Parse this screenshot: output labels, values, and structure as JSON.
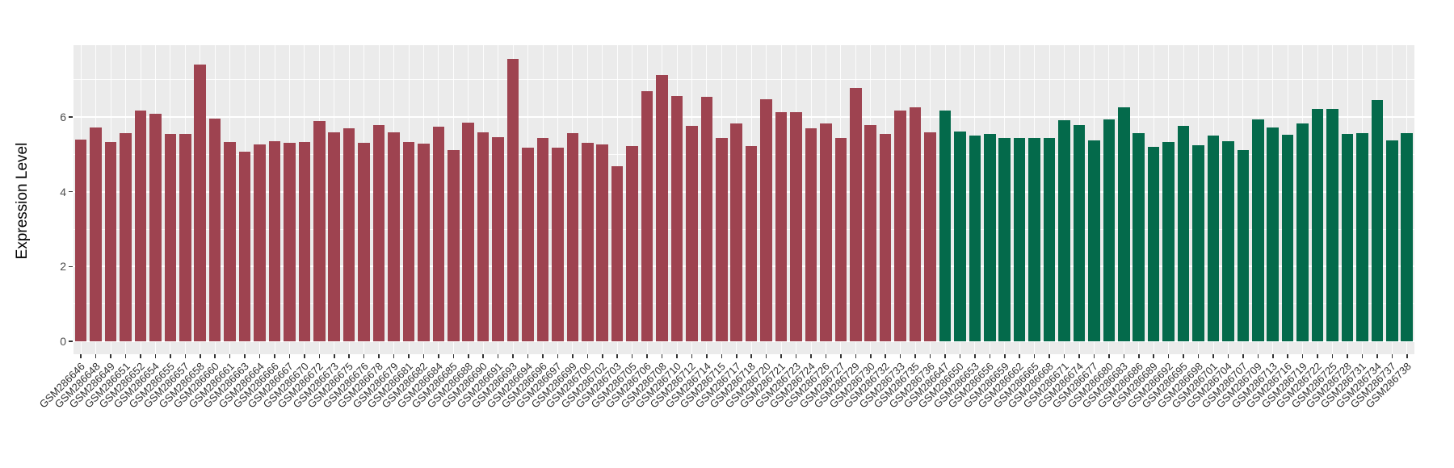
{
  "chart_data": {
    "type": "bar",
    "title": "",
    "xlabel": "",
    "ylabel": "Expression Level",
    "yticks": [
      0,
      2,
      4,
      6
    ],
    "ylim": [
      -0.35,
      7.92
    ],
    "grid": "on",
    "legend": "none",
    "panel_background": "#EBEBEB",
    "gridline_color": "#FFFFFF",
    "axis_text_color": "#4D4D4D",
    "categories": [
      "GSM286646",
      "GSM286648",
      "GSM286649",
      "GSM286651",
      "GSM286652",
      "GSM286654",
      "GSM286655",
      "GSM286657",
      "GSM286658",
      "GSM286660",
      "GSM286661",
      "GSM286663",
      "GSM286664",
      "GSM286666",
      "GSM286667",
      "GSM286670",
      "GSM286672",
      "GSM286673",
      "GSM286675",
      "GSM286676",
      "GSM286678",
      "GSM286679",
      "GSM286681",
      "GSM286682",
      "GSM286684",
      "GSM286685",
      "GSM286688",
      "GSM286690",
      "GSM286691",
      "GSM286693",
      "GSM286694",
      "GSM286696",
      "GSM286697",
      "GSM286699",
      "GSM286700",
      "GSM286702",
      "GSM286703",
      "GSM286705",
      "GSM286706",
      "GSM286708",
      "GSM286710",
      "GSM286712",
      "GSM286714",
      "GSM286715",
      "GSM286717",
      "GSM286718",
      "GSM286720",
      "GSM286721",
      "GSM286723",
      "GSM286724",
      "GSM286726",
      "GSM286727",
      "GSM286729",
      "GSM286730",
      "GSM286732",
      "GSM286733",
      "GSM286735",
      "GSM286736",
      "GSM286647",
      "GSM286650",
      "GSM286653",
      "GSM286656",
      "GSM286659",
      "GSM286662",
      "GSM286665",
      "GSM286668",
      "GSM286671",
      "GSM286674",
      "GSM286677",
      "GSM286680",
      "GSM286683",
      "GSM286686",
      "GSM286689",
      "GSM286692",
      "GSM286695",
      "GSM286698",
      "GSM286701",
      "GSM286704",
      "GSM286707",
      "GSM286709",
      "GSM286713",
      "GSM286716",
      "GSM286719",
      "GSM286722",
      "GSM286725",
      "GSM286728",
      "GSM286731",
      "GSM286734",
      "GSM286737",
      "GSM286738"
    ],
    "values": [
      5.4,
      5.73,
      5.34,
      5.57,
      6.18,
      6.09,
      5.54,
      5.54,
      7.4,
      5.96,
      5.34,
      5.07,
      5.27,
      5.36,
      5.32,
      5.34,
      5.9,
      5.58,
      5.7,
      5.32,
      5.79,
      5.59,
      5.34,
      5.29,
      5.75,
      5.12,
      5.86,
      5.59,
      5.46,
      7.56,
      5.19,
      5.43,
      5.19,
      5.57,
      5.32,
      5.27,
      4.69,
      5.22,
      6.69,
      7.13,
      6.57,
      5.77,
      6.55,
      5.45,
      5.82,
      5.22,
      6.47,
      6.14,
      6.12,
      5.7,
      5.82,
      5.44,
      6.78,
      5.78,
      5.55,
      6.17,
      6.26,
      5.59,
      6.17,
      5.62,
      5.5,
      5.55,
      5.44,
      5.45,
      5.45,
      5.43,
      5.92,
      5.78,
      5.37,
      5.94,
      6.26,
      5.56,
      5.2,
      5.34,
      5.76,
      5.25,
      5.5,
      5.36,
      5.11,
      5.94,
      5.73,
      5.52,
      5.83,
      6.21,
      6.21,
      5.55,
      5.57,
      6.45,
      5.38,
      5.57
    ],
    "groups": [
      {
        "name": "group-red",
        "color": "#9E4350",
        "count": 58
      },
      {
        "name": "group-green",
        "color": "#046A4B",
        "count": 32
      }
    ]
  }
}
